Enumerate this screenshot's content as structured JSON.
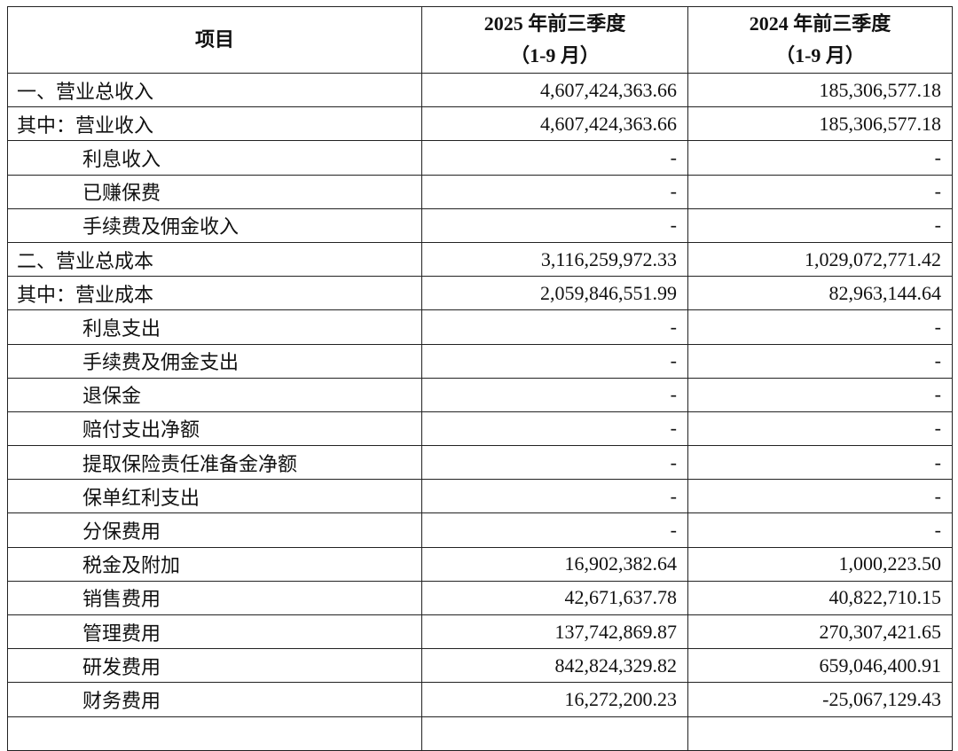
{
  "table": {
    "header": [
      [
        "项目"
      ],
      [
        "2025 年前三季度",
        "（1-9 月）"
      ],
      [
        "2024 年前三季度",
        "（1-9 月）"
      ]
    ],
    "rows": [
      [
        "一、营业总收入",
        "4,607,424,363.66",
        "185,306,577.18"
      ],
      [
        "其中：营业收入",
        "4,607,424,363.66",
        "185,306,577.18"
      ],
      [
        "利息收入",
        "-",
        "-"
      ],
      [
        "已赚保费",
        "-",
        "-"
      ],
      [
        "手续费及佣金收入",
        "-",
        "-"
      ],
      [
        "二、营业总成本",
        "3,116,259,972.33",
        "1,029,072,771.42"
      ],
      [
        "其中：营业成本",
        "2,059,846,551.99",
        "82,963,144.64"
      ],
      [
        "利息支出",
        "-",
        "-"
      ],
      [
        "手续费及佣金支出",
        "-",
        "-"
      ],
      [
        "退保金",
        "-",
        "-"
      ],
      [
        "赔付支出净额",
        "-",
        "-"
      ],
      [
        "提取保险责任准备金净额",
        "-",
        "-"
      ],
      [
        "保单红利支出",
        "-",
        "-"
      ],
      [
        "分保费用",
        "-",
        "-"
      ],
      [
        "税金及附加",
        "16,902,382.64",
        "1,000,223.50"
      ],
      [
        "销售费用",
        "42,671,637.78",
        "40,822,710.15"
      ],
      [
        "管理费用",
        "137,742,869.87",
        "270,307,421.65"
      ],
      [
        "研发费用",
        "842,824,329.82",
        "659,046,400.91"
      ],
      [
        "财务费用",
        "16,272,200.23",
        "-25,067,129.43"
      ]
    ]
  }
}
